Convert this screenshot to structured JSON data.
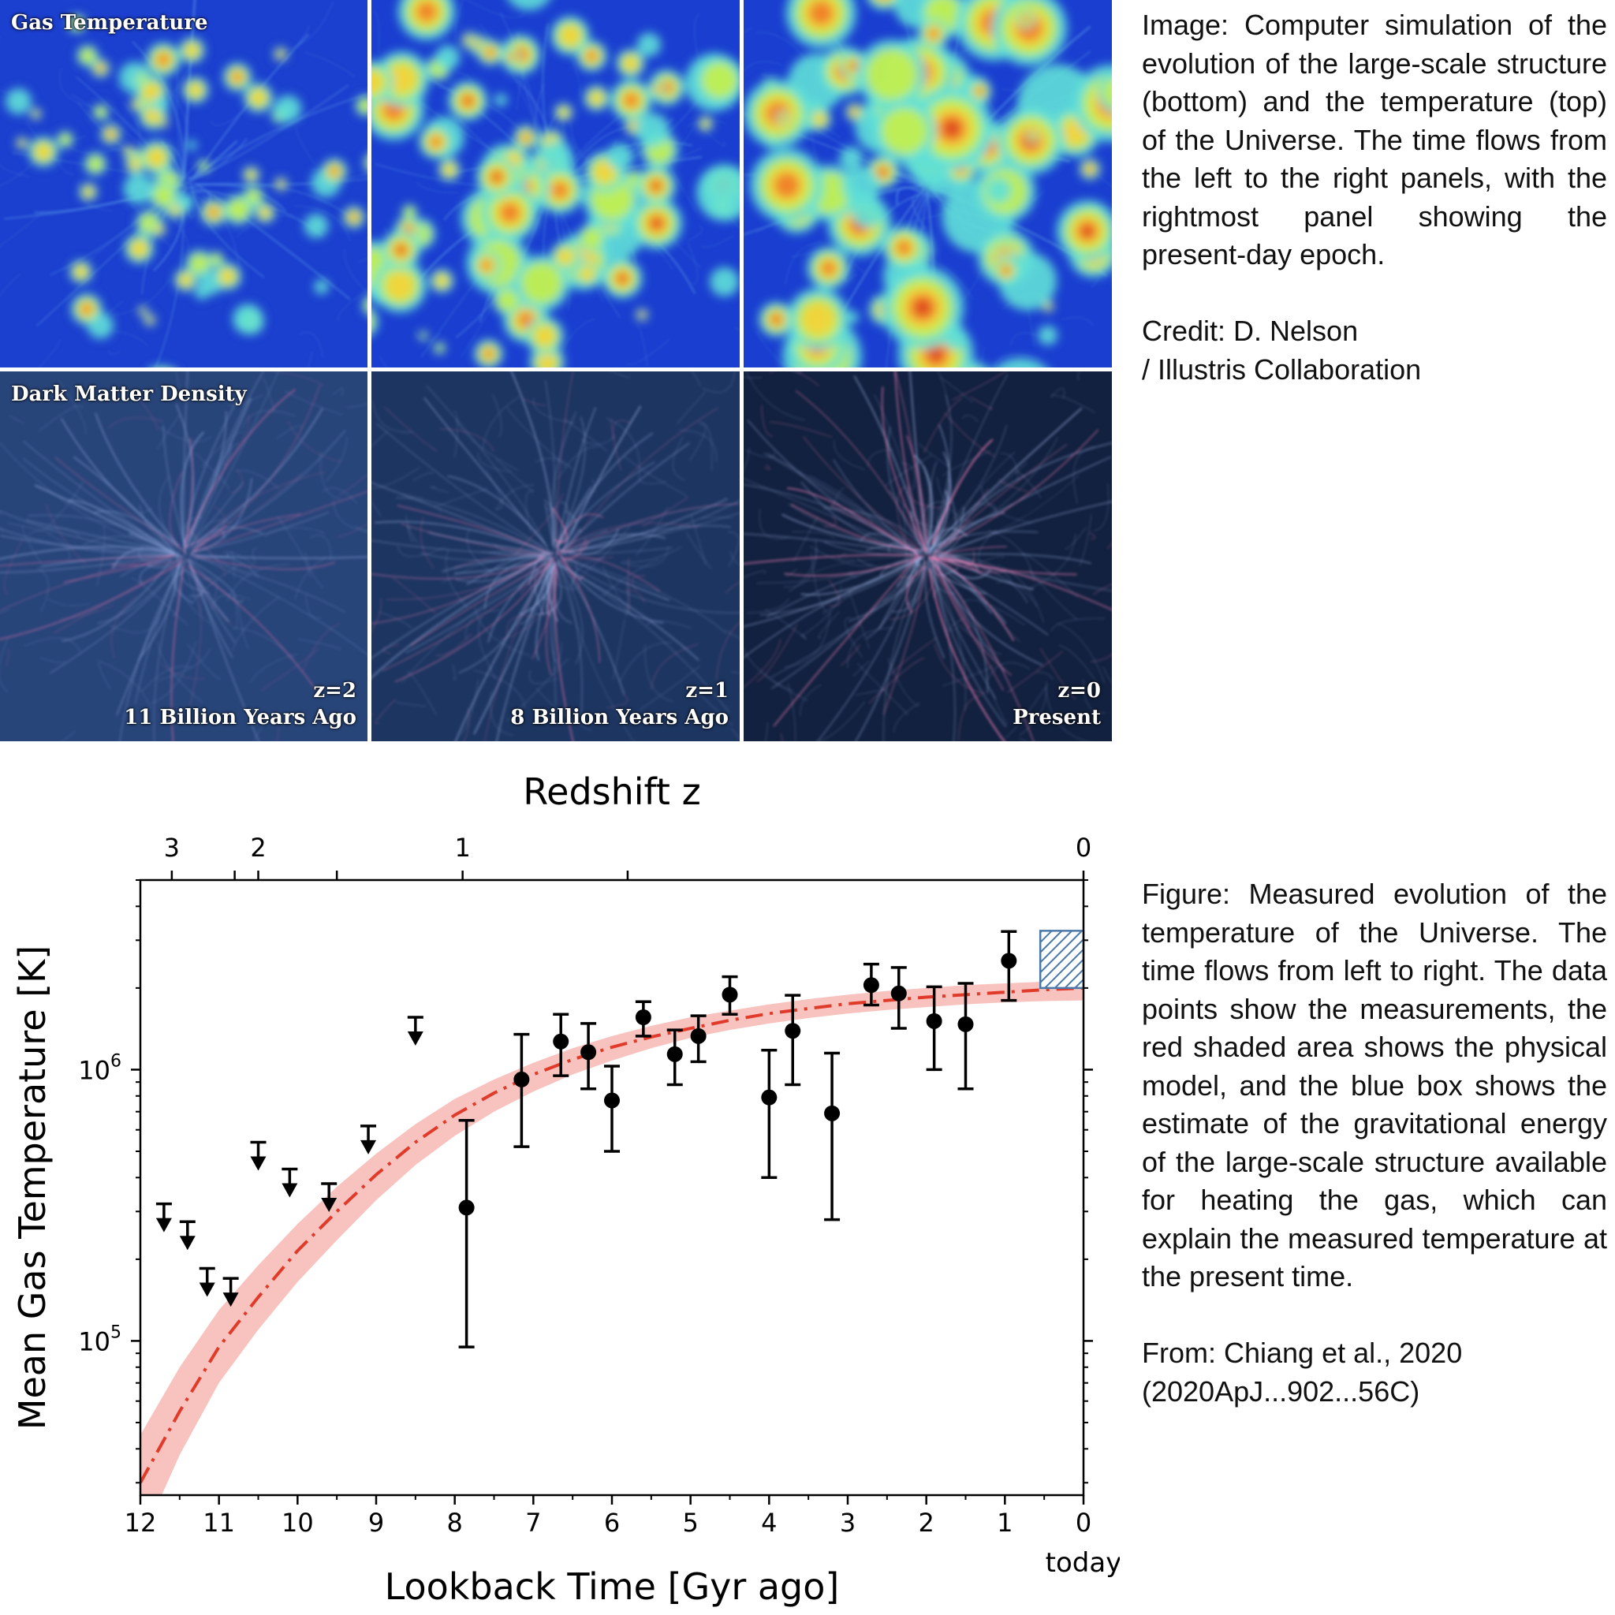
{
  "simulation": {
    "row_labels": [
      "Gas Temperature",
      "Dark Matter Density"
    ],
    "columns": [
      {
        "z_label": "z=2",
        "time_label": "11 Billion Years Ago"
      },
      {
        "z_label": "z=1",
        "time_label": "8 Billion Years Ago"
      },
      {
        "z_label": "z=0",
        "time_label": "Present"
      }
    ]
  },
  "captions": {
    "image_text": "Image: Computer simulation of the evolution of the large-scale structure (bottom) and the temperature (top) of the Universe. The time flows from the left to the right panels, with the rightmost panel showing the present-day epoch.",
    "image_credit_1": "Credit: D. Nelson",
    "image_credit_2": "/ Illustris Collaboration",
    "figure_text": "Figure: Measured evolution of the temperature of the Universe. The time flows from left to right. The data points show the measurements, the red shaded area shows the physical model, and the blue box shows the estimate of the gravitational energy of the large-scale structure available for heating the gas, which can explain the measured temperature at the present time.",
    "figure_ref_1": "From: Chiang et al., 2020",
    "figure_ref_2": "(2020ApJ...902...56C)"
  },
  "colors": {
    "model_line": "#e03b2a",
    "model_band": "#f7b9b3",
    "box": "#4a78a8",
    "points": "#000000"
  },
  "chart_data": {
    "type": "scatter",
    "xlabel": "Lookback Time [Gyr ago]",
    "ylabel": "Mean Gas Temperature [K]",
    "top_axis_label": "Redshift z",
    "x_range": [
      12,
      0
    ],
    "y_range": [
      27000,
      5000000
    ],
    "y_scale": "log",
    "x_ticks": [
      12,
      11,
      10,
      9,
      8,
      7,
      6,
      5,
      4,
      3,
      2,
      1,
      0
    ],
    "x_tick_labels": [
      "12",
      "11",
      "10",
      "9",
      "8",
      "7",
      "6",
      "5",
      "4",
      "3",
      "2",
      "1",
      "0"
    ],
    "x_extra_label": "today",
    "y_tick_labels": [
      {
        "value": 100000,
        "base": "10",
        "exp": "5"
      },
      {
        "value": 1000000,
        "base": "10",
        "exp": "6"
      }
    ],
    "top_ticks": [
      {
        "label": "3",
        "x": 11.6
      },
      {
        "label": "2",
        "x": 10.5
      },
      {
        "label": "1",
        "x": 7.9
      },
      {
        "label": "0",
        "x": 0
      }
    ],
    "top_minor_ticks_x": [
      10.8,
      9.5,
      5.8
    ],
    "model": {
      "x": [
        12.0,
        11.5,
        11.0,
        10.5,
        10.0,
        9.5,
        9.0,
        8.5,
        8.0,
        7.5,
        7.0,
        6.5,
        6.0,
        5.5,
        5.0,
        4.5,
        4.0,
        3.5,
        3.0,
        2.5,
        2.0,
        1.5,
        1.0,
        0.5,
        0.0
      ],
      "y": [
        30000,
        55000,
        95000,
        145000,
        215000,
        300000,
        410000,
        540000,
        680000,
        820000,
        960000,
        1090000,
        1210000,
        1320000,
        1420000,
        1520000,
        1610000,
        1680000,
        1750000,
        1800000,
        1850000,
        1890000,
        1930000,
        1970000,
        2000000
      ],
      "y_low": [
        18000,
        38000,
        70000,
        110000,
        165000,
        235000,
        330000,
        445000,
        570000,
        700000,
        830000,
        960000,
        1080000,
        1200000,
        1310000,
        1400000,
        1480000,
        1550000,
        1610000,
        1660000,
        1700000,
        1740000,
        1770000,
        1790000,
        1800000
      ],
      "y_high": [
        45000,
        80000,
        130000,
        190000,
        270000,
        370000,
        490000,
        630000,
        780000,
        920000,
        1060000,
        1200000,
        1330000,
        1450000,
        1560000,
        1650000,
        1740000,
        1820000,
        1890000,
        1950000,
        2000000,
        2050000,
        2080000,
        2110000,
        2130000
      ]
    },
    "upper_limits": [
      {
        "x": 11.7,
        "y": 320000
      },
      {
        "x": 11.4,
        "y": 275000
      },
      {
        "x": 11.15,
        "y": 185000
      },
      {
        "x": 10.85,
        "y": 170000
      },
      {
        "x": 10.5,
        "y": 540000
      },
      {
        "x": 10.1,
        "y": 430000
      },
      {
        "x": 9.6,
        "y": 380000
      },
      {
        "x": 9.1,
        "y": 620000
      },
      {
        "x": 8.5,
        "y": 1560000
      }
    ],
    "points": [
      {
        "x": 7.85,
        "y": 310000,
        "ylo": 95000,
        "yhi": 650000
      },
      {
        "x": 7.15,
        "y": 920000,
        "ylo": 520000,
        "yhi": 1350000
      },
      {
        "x": 6.65,
        "y": 1270000,
        "ylo": 950000,
        "yhi": 1600000
      },
      {
        "x": 6.3,
        "y": 1160000,
        "ylo": 850000,
        "yhi": 1480000
      },
      {
        "x": 6.0,
        "y": 770000,
        "ylo": 500000,
        "yhi": 1030000
      },
      {
        "x": 5.6,
        "y": 1560000,
        "ylo": 1330000,
        "yhi": 1780000
      },
      {
        "x": 5.2,
        "y": 1140000,
        "ylo": 880000,
        "yhi": 1400000
      },
      {
        "x": 4.9,
        "y": 1330000,
        "ylo": 1070000,
        "yhi": 1580000
      },
      {
        "x": 4.5,
        "y": 1890000,
        "ylo": 1600000,
        "yhi": 2200000
      },
      {
        "x": 4.0,
        "y": 790000,
        "ylo": 400000,
        "yhi": 1180000
      },
      {
        "x": 3.7,
        "y": 1390000,
        "ylo": 880000,
        "yhi": 1880000
      },
      {
        "x": 3.2,
        "y": 690000,
        "ylo": 280000,
        "yhi": 1150000
      },
      {
        "x": 2.7,
        "y": 2050000,
        "ylo": 1730000,
        "yhi": 2450000
      },
      {
        "x": 2.35,
        "y": 1910000,
        "ylo": 1420000,
        "yhi": 2380000
      },
      {
        "x": 1.9,
        "y": 1510000,
        "ylo": 1000000,
        "yhi": 2020000
      },
      {
        "x": 1.5,
        "y": 1470000,
        "ylo": 850000,
        "yhi": 2080000
      },
      {
        "x": 0.95,
        "y": 2520000,
        "ylo": 1800000,
        "yhi": 3230000
      }
    ],
    "energy_box": {
      "x0": 0.55,
      "x1": 0.0,
      "y_low": 2000000,
      "y_high": 3250000
    }
  }
}
